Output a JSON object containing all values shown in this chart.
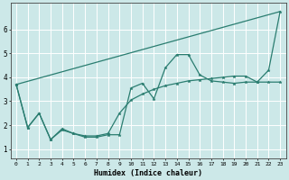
{
  "xlabel": "Humidex (Indice chaleur)",
  "bg_color": "#cce8e8",
  "grid_color": "#ffffff",
  "line_color": "#2a7d70",
  "xlim": [
    -0.5,
    23.5
  ],
  "ylim": [
    0.6,
    7.1
  ],
  "yticks": [
    1,
    2,
    3,
    4,
    5,
    6
  ],
  "xtick_labels": [
    "0",
    "1",
    "2",
    "3",
    "4",
    "5",
    "6",
    "7",
    "8",
    "9",
    "10",
    "11",
    "12",
    "13",
    "14",
    "15",
    "16",
    "17",
    "18",
    "19",
    "20",
    "21",
    "22",
    "23"
  ],
  "series": [
    {
      "x": [
        0,
        1,
        2,
        3,
        4,
        5,
        6,
        7,
        8,
        9,
        10,
        11,
        12,
        13,
        14,
        15,
        16,
        17,
        18,
        19,
        20,
        21,
        22,
        23
      ],
      "y": [
        3.7,
        1.9,
        2.5,
        1.4,
        1.8,
        1.65,
        1.5,
        1.5,
        1.6,
        1.6,
        3.55,
        3.75,
        3.1,
        4.4,
        4.95,
        4.95,
        4.1,
        3.85,
        3.8,
        3.75,
        3.8,
        3.8,
        4.3,
        6.75
      ]
    },
    {
      "x": [
        0,
        23
      ],
      "y": [
        3.7,
        6.75
      ]
    },
    {
      "x": [
        0,
        1,
        2,
        3,
        4,
        5,
        6,
        7,
        8,
        9,
        10,
        11,
        12,
        13,
        14,
        15,
        16,
        17,
        18,
        19,
        20,
        21,
        22,
        23
      ],
      "y": [
        3.7,
        1.9,
        2.5,
        1.4,
        1.85,
        1.65,
        1.55,
        1.55,
        1.65,
        2.5,
        3.05,
        3.3,
        3.5,
        3.65,
        3.75,
        3.85,
        3.9,
        3.95,
        4.0,
        4.05,
        4.05,
        3.8,
        3.8,
        3.8
      ]
    }
  ]
}
